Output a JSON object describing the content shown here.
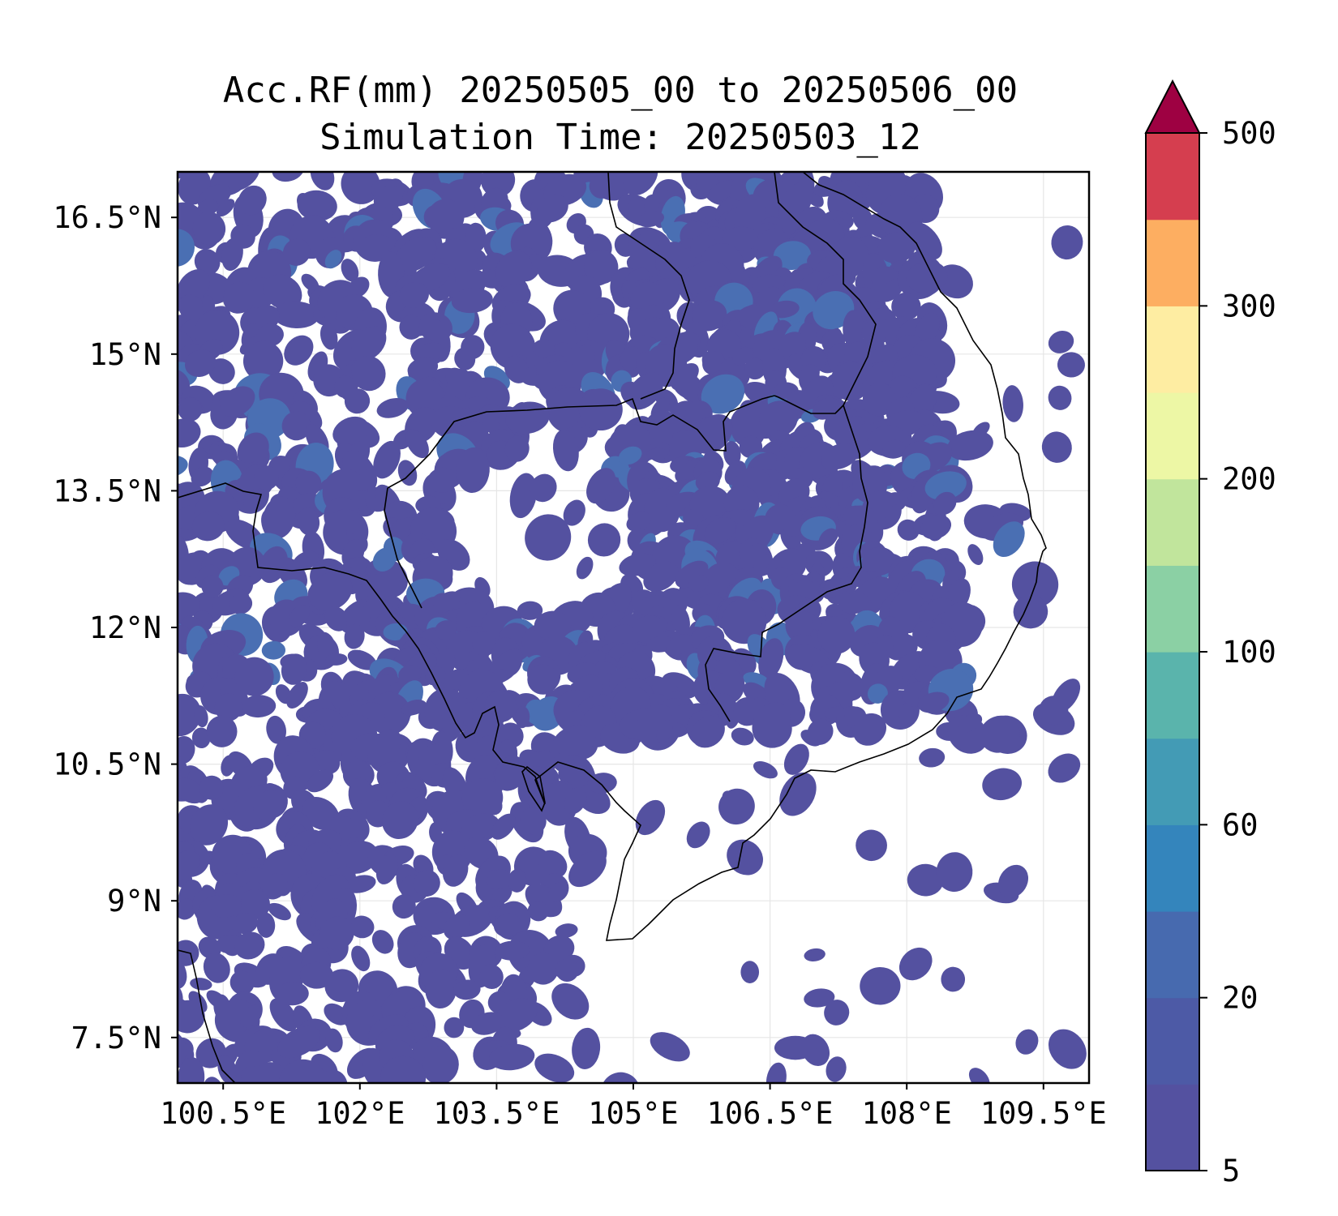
{
  "title": {
    "line1": "Acc.RF(mm) 20250505_00 to 20250506_00",
    "line2": "Simulation Time: 20250503_12"
  },
  "map": {
    "lon_range": [
      100.0,
      110.0
    ],
    "lat_range": [
      7.0,
      17.0
    ],
    "lon_ticks": [
      {
        "value": 100.5,
        "label": "100.5°E"
      },
      {
        "value": 102.0,
        "label": "102°E"
      },
      {
        "value": 103.5,
        "label": "103.5°E"
      },
      {
        "value": 105.0,
        "label": "105°E"
      },
      {
        "value": 106.5,
        "label": "106.5°E"
      },
      {
        "value": 108.0,
        "label": "108°E"
      },
      {
        "value": 109.5,
        "label": "109.5°E"
      }
    ],
    "lat_ticks": [
      {
        "value": 16.5,
        "label": "16.5°N"
      },
      {
        "value": 15.0,
        "label": "15°N"
      },
      {
        "value": 13.5,
        "label": "13.5°N"
      },
      {
        "value": 12.0,
        "label": "12°N"
      },
      {
        "value": 10.5,
        "label": "10.5°N"
      },
      {
        "value": 9.0,
        "label": "9°N"
      },
      {
        "value": 7.5,
        "label": "7.5°N"
      }
    ],
    "grid": true,
    "gridline_color": "#e6e6e6",
    "rain_color": "#5451a0",
    "rain_color_light": "#4a6fb3"
  },
  "colorbar": {
    "levels": [
      5,
      10,
      20,
      40,
      60,
      80,
      100,
      150,
      200,
      250,
      300,
      400,
      500
    ],
    "colors": [
      "#5451a0",
      "#4d5aa6",
      "#476aaf",
      "#3485bc",
      "#439bb5",
      "#5ab4ac",
      "#8bd0a4",
      "#c1e59c",
      "#edf7a5",
      "#feeda2",
      "#fdae61",
      "#d53e4f"
    ],
    "extend_color": "#9e0142",
    "tick_labels": [
      "5",
      "20",
      "60",
      "100",
      "200",
      "300",
      "500"
    ],
    "tick_level_indices": [
      0,
      2,
      4,
      6,
      8,
      10,
      12
    ]
  }
}
